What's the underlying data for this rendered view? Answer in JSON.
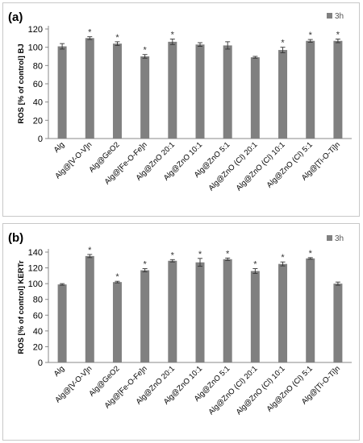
{
  "chart_data": [
    {
      "type": "bar",
      "panel_label": "(a)",
      "ylabel": "ROS [% of control] BJ",
      "ylim": [
        0,
        120
      ],
      "yticks": [
        0,
        20,
        40,
        60,
        80,
        100,
        120
      ],
      "legend": "3h",
      "legend_position": "top-right",
      "bar_color": "#808080",
      "categories": [
        "Alg",
        "Alg@[V-O-V]n",
        "Alg@GeO2",
        "Alg@[Fe-O-Fe]n",
        "Alg@ZnO 20:1",
        "Alg@ZnO 10:1",
        "Alg@ZnO 5:1",
        "Alg@ZnO (Cl)  20:1",
        "Alg@ZnO (Cl) 10:1",
        "Alg@ZnO (Cl) 5:1",
        "Alg@[Ti-O-Ti]n"
      ],
      "slot_index": [
        0,
        1,
        2,
        3,
        4,
        5,
        6,
        7,
        8,
        9,
        10
      ],
      "values": [
        101,
        110,
        104,
        90,
        106,
        103,
        102,
        89,
        97,
        107,
        107
      ],
      "errors": [
        3,
        1.5,
        2,
        2,
        3,
        2,
        4,
        1,
        3,
        1.5,
        2
      ],
      "significant": [
        false,
        true,
        true,
        true,
        true,
        false,
        false,
        false,
        true,
        true,
        true
      ]
    },
    {
      "type": "bar",
      "panel_label": "(b)",
      "ylabel": "ROS [% of control] KERTr",
      "ylim": [
        0,
        140
      ],
      "yticks": [
        0,
        20,
        40,
        60,
        80,
        100,
        120,
        140
      ],
      "legend": "3h",
      "legend_position": "top-right",
      "bar_color": "#808080",
      "categories": [
        "Alg",
        "Alg@[V-O-V]n",
        "Alg@GeO2",
        "Alg@[Fe-O-Fe]n",
        "Alg@ZnO 20:1",
        "Alg@ZnO 10:1",
        "Alg@ZnO 5:1",
        "Alg@ZnO (Cl)  20:1",
        "Alg@ZnO (Cl) 10:1",
        "Alg@ZnO (Cl) 5:1",
        "Alg@[Ti-O-Ti]n"
      ],
      "slot_index": [
        0,
        1,
        2,
        3,
        4,
        5,
        6,
        7,
        8,
        9,
        10
      ],
      "values": [
        99,
        135,
        102,
        117,
        129,
        127,
        131,
        116,
        125,
        132,
        100
      ],
      "errors": [
        1,
        2,
        1,
        2,
        1.5,
        5,
        1.5,
        3,
        2.5,
        1,
        2
      ],
      "significant": [
        false,
        true,
        true,
        true,
        true,
        true,
        true,
        true,
        true,
        true,
        false
      ]
    }
  ]
}
